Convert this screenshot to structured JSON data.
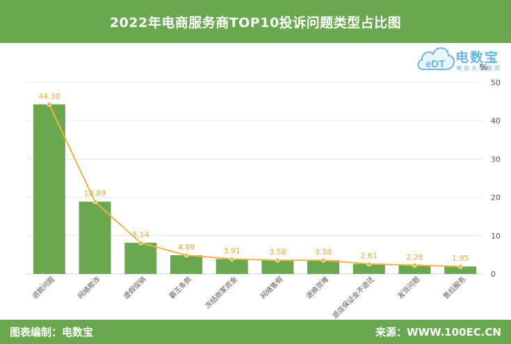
{
  "header": {
    "title": "2022年电商服务商TOP10投诉问题类型占比图"
  },
  "footer": {
    "left": "图表编制：电数宝",
    "right": "来源：WWW.100EC.CN"
  },
  "logo": {
    "name": "电数宝",
    "sub": "电商大数据库",
    "mark": "eDT"
  },
  "colors": {
    "header": "#6aa84f",
    "bar": "#6aa84f",
    "line": "#f6b042",
    "label": "#f0a63a",
    "grid": "#e6e6e6",
    "axis_text": "#555555"
  },
  "chart_data": {
    "type": "bar",
    "title": "2022年电商服务商TOP10投诉问题类型占比图",
    "ylabel": "%",
    "ylim": [
      0,
      50
    ],
    "yticks": [
      0,
      10,
      20,
      30,
      40,
      50
    ],
    "y_axis_position": "right",
    "grid": true,
    "categories": [
      "退款问题",
      "网络欺诈",
      "虚假促销",
      "霸王条款",
      "冻结商家资金",
      "网络售假",
      "退换货难",
      "退店保证金不退还",
      "发货问题",
      "售后服务"
    ],
    "values": [
      44.3,
      18.89,
      8.14,
      4.89,
      3.91,
      3.58,
      3.58,
      2.61,
      2.28,
      1.95
    ],
    "data_labels": [
      "44.30",
      "18.89",
      "8.14",
      "4.89",
      "3.91",
      "3.58",
      "3.58",
      "2.61",
      "2.28",
      "1.95"
    ],
    "overlay_line": true
  }
}
